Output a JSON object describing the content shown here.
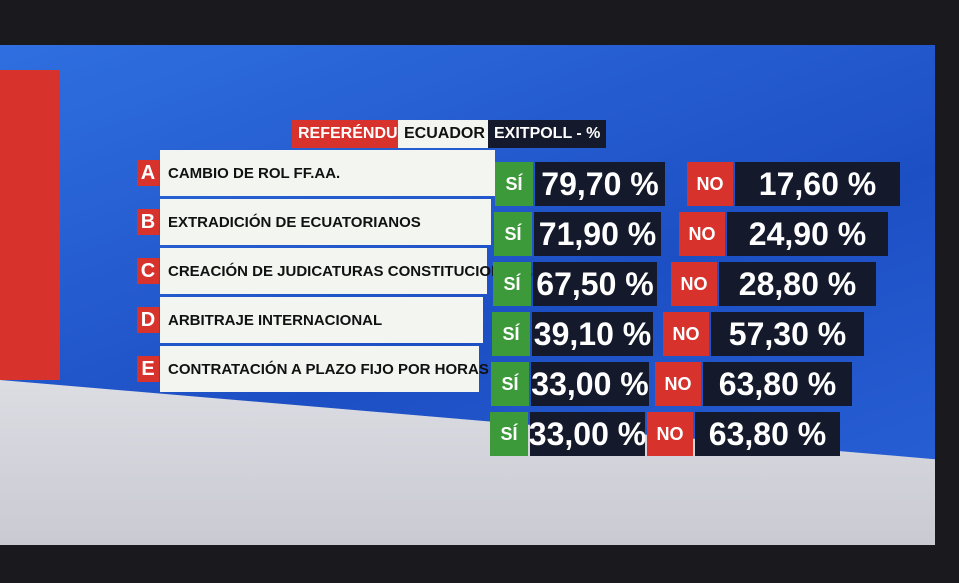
{
  "header": {
    "label_1": "REFERÉNDUM",
    "label_2": "ECUADOR",
    "label_3": "EXITPOLL - %"
  },
  "questions": [
    {
      "letter": "A",
      "text": "CAMBIO DE ROL FF.AA."
    },
    {
      "letter": "B",
      "text": "EXTRADICIÓN DE ECUATORIANOS"
    },
    {
      "letter": "C",
      "text": "CREACIÓN DE JUDICATURAS CONSTITUCIONALES"
    },
    {
      "letter": "D",
      "text": "ARBITRAJE INTERNACIONAL"
    },
    {
      "letter": "E",
      "text": "CONTRATACIÓN A PLAZO FIJO  POR HORAS"
    }
  ],
  "results": [
    {
      "yes_label": "SÍ",
      "yes": "79,70 %",
      "no_label": "NO",
      "no": "17,60 %"
    },
    {
      "yes_label": "SÍ",
      "yes": "71,90 %",
      "no_label": "NO",
      "no": "24,90 %"
    },
    {
      "yes_label": "SÍ",
      "yes": "67,50 %",
      "no_label": "NO",
      "no": "28,80 %"
    },
    {
      "yes_label": "SÍ",
      "yes": "39,10 %",
      "no_label": "NO",
      "no": "57,30 %"
    },
    {
      "yes_label": "SÍ",
      "yes": "33,00 %",
      "no_label": "NO",
      "no": "63,80 %"
    }
  ],
  "extra_result": {
    "yes_label": "SÍ",
    "yes": "33,00 %",
    "no_label": "NO",
    "no": "63,80 %"
  }
}
